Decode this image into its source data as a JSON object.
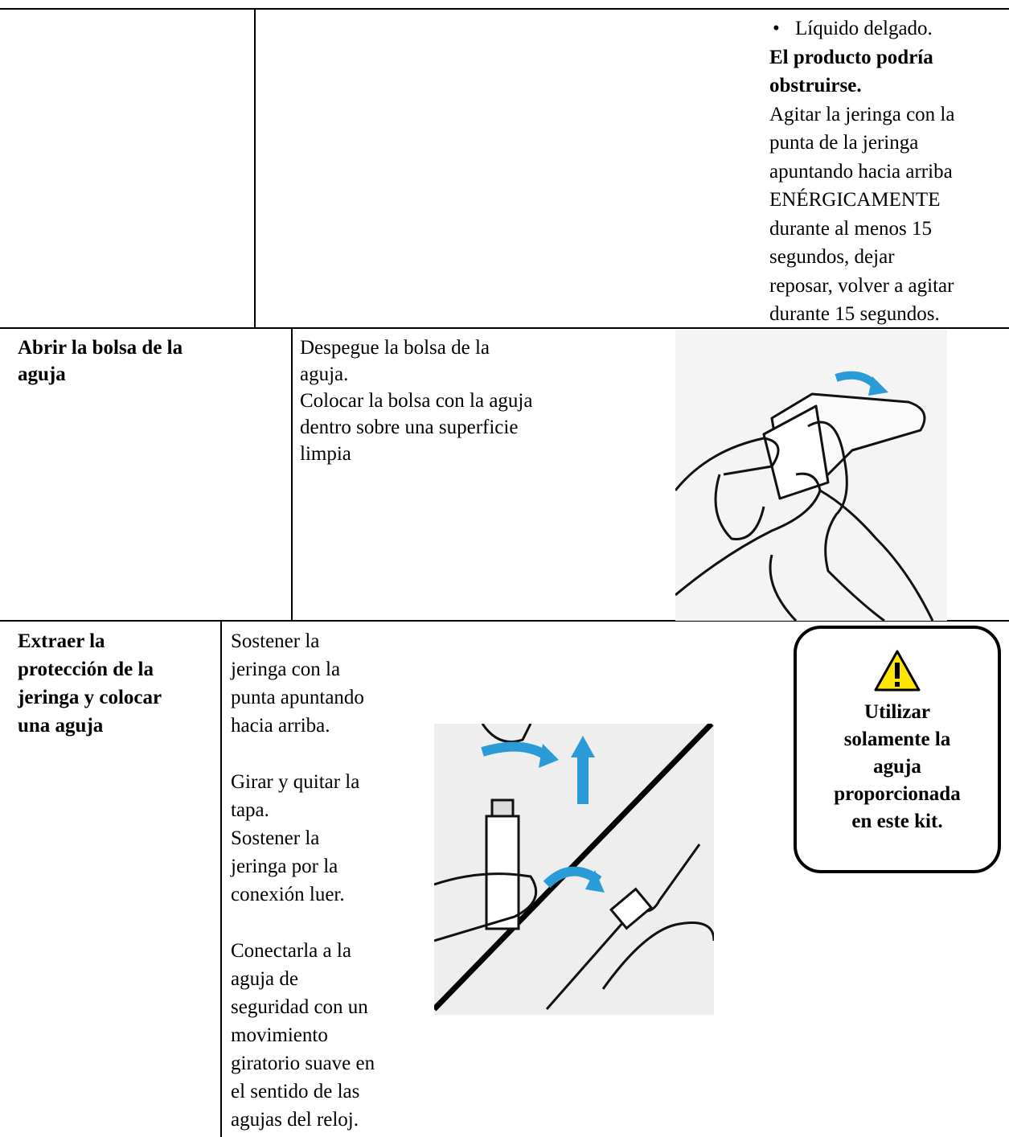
{
  "rows": [
    {
      "bullet": "Líquido delgado.",
      "warning_lines": [
        "El producto podría",
        "obstruirse."
      ],
      "instruction_lines": [
        "Agitar la jeringa con la",
        "punta de la jeringa",
        "apuntando hacia arriba",
        "ENÉRGICAMENTE",
        "durante al menos 15",
        "segundos, dejar",
        "reposar, volver a agitar",
        "durante 15 segundos."
      ]
    },
    {
      "step_lines": [
        "Abrir la bolsa de la",
        "aguja"
      ],
      "instruction_lines": [
        "Despegue la bolsa de la",
        "aguja.",
        "Colocar la bolsa con la aguja",
        "dentro sobre una superficie",
        "limpia"
      ]
    },
    {
      "step_lines": [
        "Extraer la",
        "protección de la",
        "jeringa y colocar",
        "una aguja"
      ],
      "instruction_paragraphs": [
        [
          "Sostener la",
          "jeringa con la",
          "punta apuntando",
          "hacia arriba."
        ],
        [
          "Girar y quitar la",
          "tapa.",
          "Sostener la",
          "jeringa por la",
          "conexión luer."
        ],
        [
          "Conectarla a la",
          "aguja de",
          "seguridad con un",
          "movimiento",
          "giratorio suave en",
          "el sentido de las",
          "agujas del reloj."
        ]
      ],
      "caution_lines": [
        "Utilizar",
        "solamente la",
        "aguja",
        "proporcionada",
        "en este kit."
      ]
    }
  ]
}
